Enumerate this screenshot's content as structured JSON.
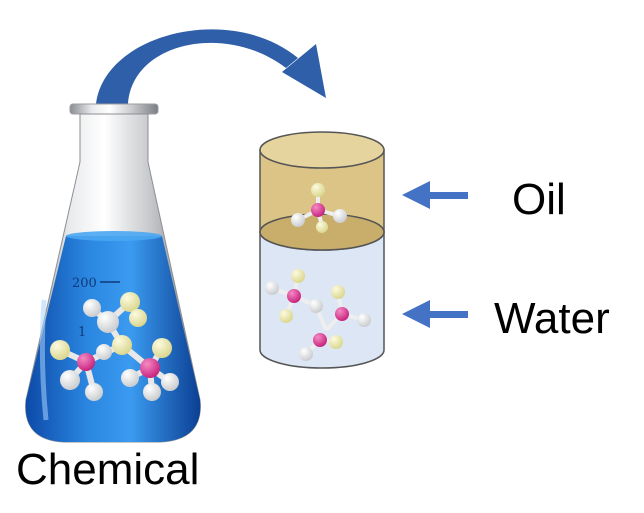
{
  "labels": {
    "oil": "Oil",
    "water": "Water",
    "chemical": "Chemical",
    "flask_mark_200": "200",
    "flask_mark_1": "1"
  },
  "icons": {
    "transfer": "curved-arrow-icon",
    "pointer": "left-arrow-icon",
    "molecule": "molecule-icon",
    "flask": "erlenmeyer-flask-icon"
  },
  "colors": {
    "liquid_blue": "#1f6fd0",
    "oil_layer": "#dcc486",
    "water_layer": "#dde6f5",
    "arrow_blue": "#4472c4",
    "molecule_center": "#e0449a",
    "molecule_white": "#ffffff",
    "molecule_yellow": "#f1eeaa"
  }
}
